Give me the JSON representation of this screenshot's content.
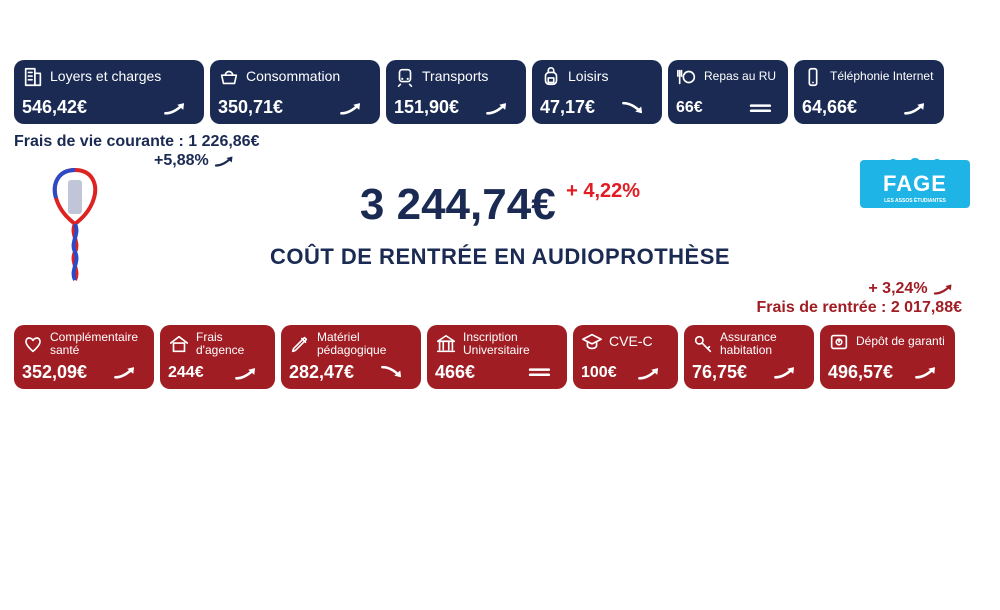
{
  "colors": {
    "navy": "#1a2a52",
    "red": "#a01d24",
    "brightRed": "#e31b23",
    "white": "#ffffff",
    "fageBlue": "#1fb4e6"
  },
  "topRow": {
    "color": "#1a2a52",
    "items": [
      {
        "icon": "building",
        "label": "Loyers et charges",
        "value": "546,42€",
        "trend": "up",
        "width": 190
      },
      {
        "icon": "basket",
        "label": "Consommation",
        "value": "350,71€",
        "trend": "up",
        "width": 170
      },
      {
        "icon": "train",
        "label": "Transports",
        "value": "151,90€",
        "trend": "up",
        "width": 140
      },
      {
        "icon": "backpack",
        "label": "Loisirs",
        "value": "47,17€",
        "trend": "down",
        "width": 130
      },
      {
        "icon": "meal",
        "label": "Repas au RU",
        "value": "66€",
        "trend": "flat",
        "width": 120,
        "twoLine": true
      },
      {
        "icon": "phone",
        "label": "Téléphonie Internet",
        "value": "64,66€",
        "trend": "up",
        "width": 150,
        "twoLine": true
      }
    ]
  },
  "topSummary": {
    "label": "Frais de vie courante :",
    "value": "1 226,86€",
    "delta": "+5,88%",
    "trend": "up"
  },
  "center": {
    "amount": "3 244,74€",
    "delta": "+ 4,22%",
    "subtitle": "COÛT DE RENTRÉE EN AUDIOPROTHÈSE"
  },
  "bottomSummary": {
    "label": "Frais de rentrée :",
    "value": "2 017,88€",
    "delta": "+ 3,24%",
    "trend": "up"
  },
  "bottomRow": {
    "color": "#a01d24",
    "items": [
      {
        "icon": "heart",
        "label": "Complémentaire santé",
        "value": "352,09€",
        "trend": "up",
        "width": 140,
        "twoLine": true
      },
      {
        "icon": "house",
        "label": "Frais d'agence",
        "value": "244€",
        "trend": "up",
        "width": 115,
        "twoLine": true
      },
      {
        "icon": "pen",
        "label": "Matériel pédagogique",
        "value": "282,47€",
        "trend": "down",
        "width": 140,
        "twoLine": true
      },
      {
        "icon": "bank",
        "label": "Inscription Universitaire",
        "value": "466€",
        "trend": "flat",
        "width": 140,
        "twoLine": true
      },
      {
        "icon": "grad",
        "label": "CVE-C",
        "value": "100€",
        "trend": "up",
        "width": 105
      },
      {
        "icon": "key",
        "label": "Assurance habitation",
        "value": "76,75€",
        "trend": "up",
        "width": 130,
        "twoLine": true
      },
      {
        "icon": "safe",
        "label": "Dépôt de garanti",
        "value": "496,57€",
        "trend": "up",
        "width": 135,
        "twoLine": true
      }
    ]
  },
  "fage": {
    "text": "FAGE",
    "sub": "LES ASSOS ÉTUDIANTES"
  }
}
